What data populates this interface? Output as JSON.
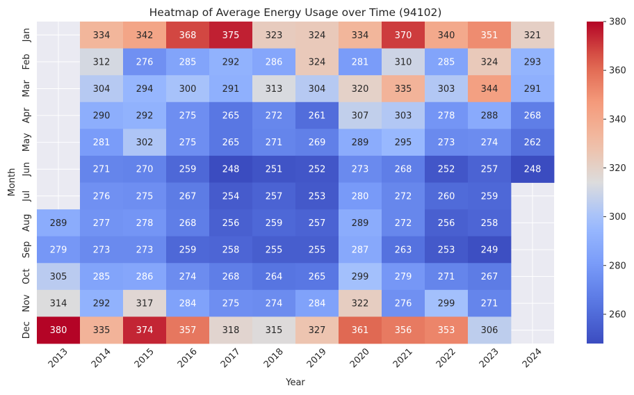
{
  "chart_data": {
    "type": "heatmap",
    "title": "Heatmap of Average Energy Usage over Time (94102)",
    "xlabel": "Year",
    "ylabel": "Month",
    "x": [
      "2013",
      "2014",
      "2015",
      "2016",
      "2017",
      "2018",
      "2019",
      "2020",
      "2021",
      "2022",
      "2023",
      "2024"
    ],
    "y": [
      "Jan",
      "Feb",
      "Mar",
      "Apr",
      "May",
      "Jun",
      "Jul",
      "Aug",
      "Sep",
      "Oct",
      "Nov",
      "Dec"
    ],
    "values": [
      [
        null,
        334,
        342,
        368,
        375,
        323,
        324,
        334,
        370,
        340,
        351,
        321
      ],
      [
        null,
        312,
        276,
        285,
        292,
        286,
        324,
        281,
        310,
        285,
        324,
        293
      ],
      [
        null,
        304,
        294,
        300,
        291,
        313,
        304,
        320,
        335,
        303,
        344,
        291
      ],
      [
        null,
        290,
        292,
        275,
        265,
        272,
        261,
        307,
        303,
        278,
        288,
        268
      ],
      [
        null,
        281,
        302,
        275,
        265,
        271,
        269,
        289,
        295,
        273,
        274,
        262
      ],
      [
        null,
        271,
        270,
        259,
        248,
        251,
        252,
        273,
        268,
        252,
        257,
        248
      ],
      [
        null,
        276,
        275,
        267,
        254,
        257,
        253,
        280,
        272,
        260,
        259,
        null
      ],
      [
        289,
        277,
        278,
        268,
        256,
        259,
        257,
        289,
        272,
        256,
        258,
        null
      ],
      [
        279,
        273,
        273,
        259,
        258,
        255,
        255,
        287,
        263,
        253,
        249,
        null
      ],
      [
        305,
        285,
        286,
        274,
        268,
        264,
        265,
        299,
        279,
        271,
        267,
        null
      ],
      [
        314,
        292,
        317,
        284,
        275,
        274,
        284,
        322,
        276,
        299,
        271,
        null
      ],
      [
        380,
        335,
        374,
        357,
        318,
        315,
        327,
        361,
        356,
        353,
        306,
        null
      ]
    ],
    "colormap": "coolwarm",
    "vmin": 248,
    "vmax": 380,
    "colorbar_ticks": [
      260,
      280,
      300,
      320,
      340,
      360,
      380
    ],
    "grid": true,
    "colors": {
      "missing_background": "#eaeaf2",
      "grid_line": "#ffffff"
    }
  }
}
